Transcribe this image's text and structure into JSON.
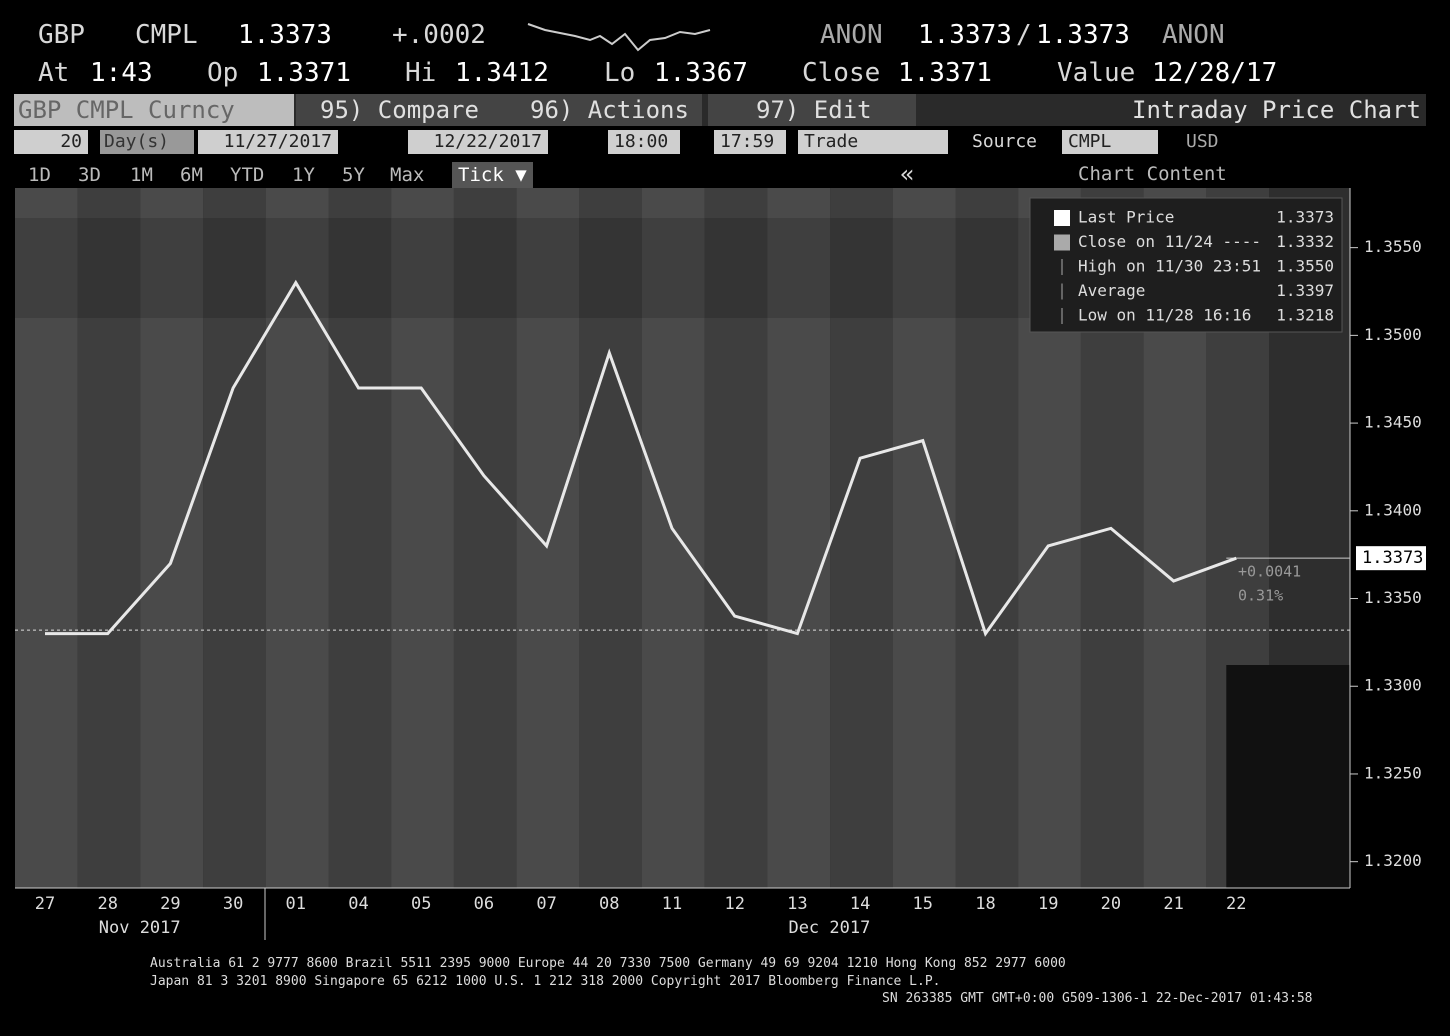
{
  "header": {
    "ticker": "GBP",
    "source": "CMPL",
    "last": "1.3373",
    "change": "+.0002",
    "bid_src": "ANON",
    "bid": "1.3373",
    "sep": "/",
    "ask": "1.3373",
    "ask_src": "ANON",
    "at_label": "At",
    "at": "1:43",
    "op_label": "Op",
    "op": "1.3371",
    "hi_label": "Hi",
    "hi": "1.3412",
    "lo_label": "Lo",
    "lo": "1.3367",
    "close_label": "Close",
    "close": "1.3371",
    "value_label": "Value",
    "value": "12/28/17"
  },
  "toolbar": {
    "security": "GBP CMPL Curncy",
    "compare": "95) Compare",
    "actions": "96) Actions",
    "edit": "97) Edit",
    "title": "Intraday Price Chart"
  },
  "settings": {
    "period": "20",
    "unit": "Day(s)",
    "start": "11/27/2017",
    "end": "12/22/2017",
    "from_time": "18:00",
    "to_time": "17:59",
    "event": "Trade",
    "source_label": "Source",
    "source": "CMPL",
    "currency": "USD"
  },
  "tabs": [
    "1D",
    "3D",
    "1M",
    "6M",
    "YTD",
    "1Y",
    "5Y",
    "Max",
    "Tick ▼"
  ],
  "collapse": "«",
  "chart_content": "Chart Content",
  "chart_data": {
    "type": "line",
    "categories": [
      "27",
      "28",
      "29",
      "30",
      "01",
      "04",
      "05",
      "06",
      "07",
      "08",
      "11",
      "12",
      "13",
      "14",
      "15",
      "18",
      "19",
      "20",
      "21",
      "22"
    ],
    "months": [
      {
        "label": "Nov 2017",
        "at": 1
      },
      {
        "label": "Dec 2017",
        "at": 12
      }
    ],
    "series": [
      {
        "name": "Last Price",
        "color": "#e8e8e8",
        "values": [
          1.333,
          1.333,
          1.337,
          1.347,
          1.353,
          1.347,
          1.347,
          1.342,
          1.338,
          1.349,
          1.339,
          1.334,
          1.333,
          1.343,
          1.344,
          1.333,
          1.338,
          1.339,
          1.336,
          1.3373
        ]
      }
    ],
    "last_price": 1.3373,
    "last_label": "1.3373",
    "close_price": 1.3332,
    "change_annotation": "+0.0041",
    "pct_annotation": "0.31%",
    "ylim": [
      1.3185,
      1.3584
    ],
    "yticks": [
      {
        "value": 1.32,
        "label": "1.3200"
      },
      {
        "value": 1.325,
        "label": "1.3250"
      },
      {
        "value": 1.33,
        "label": "1.3300"
      },
      {
        "value": 1.335,
        "label": "1.3350"
      },
      {
        "value": 1.34,
        "label": "1.3400"
      },
      {
        "value": 1.345,
        "label": "1.3450"
      },
      {
        "value": 1.35,
        "label": "1.3500"
      },
      {
        "value": 1.355,
        "label": "1.3550"
      }
    ],
    "legend": [
      {
        "name": "Last Price",
        "value": "1.3373"
      },
      {
        "name": "Close on 11/24 ----",
        "value": "1.3332"
      },
      {
        "name": "High on 11/30 23:51",
        "value": "1.3550"
      },
      {
        "name": "Average",
        "value": "1.3397"
      },
      {
        "name": "Low on 11/28 16:16",
        "value": "1.3218"
      }
    ]
  },
  "footer": [
    "Australia 61 2 9777 8600 Brazil 5511 2395 9000 Europe 44 20 7330 7500 Germany 49 69 9204 1210 Hong Kong 852 2977 6000",
    "Japan 81 3 3201 8900 Singapore 65 6212 1000 U.S. 1 212 318 2000 Copyright 2017 Bloomberg Finance L.P.",
    "SN 263385 GMT GMT+0:00 G509-1306-1 22-Dec-2017 01:43:58"
  ]
}
